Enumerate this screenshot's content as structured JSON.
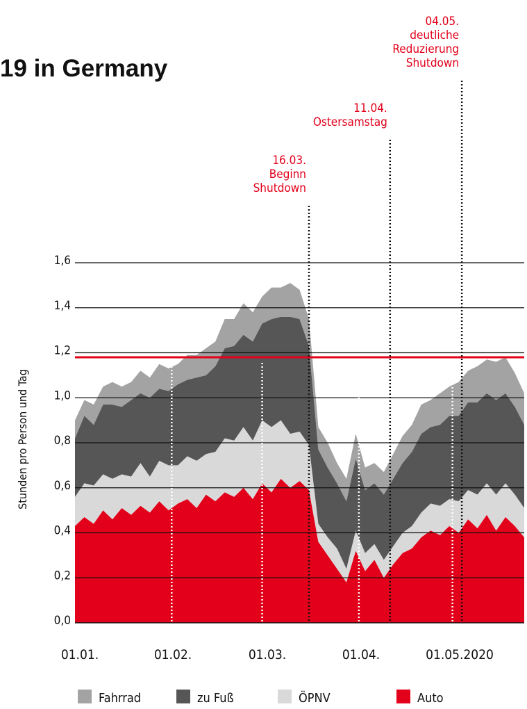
{
  "chart_data": {
    "type": "area",
    "title": "19 in Germany",
    "ylabel": "Stunden pro Person und Tag",
    "ylim": [
      0,
      1.6
    ],
    "yticks": [
      "0,0",
      "0,2",
      "0,4",
      "0,6",
      "0,8",
      "1,0",
      "1,2",
      "1,4",
      "1,6"
    ],
    "xticks": [
      "01.01.",
      "01.02.",
      "01.03.",
      "01.04.",
      "01.05.2020"
    ],
    "reference_line": 1.18,
    "x_days": [
      1,
      4,
      7,
      10,
      13,
      16,
      19,
      22,
      25,
      28,
      31,
      34,
      37,
      40,
      43,
      46,
      49,
      52,
      55,
      58,
      61,
      64,
      67,
      70,
      73,
      76,
      79,
      82,
      85,
      88,
      91,
      94,
      97,
      100,
      103,
      106,
      109,
      112,
      115,
      118,
      121,
      124,
      127,
      130,
      133,
      136,
      139,
      142,
      145
    ],
    "series": [
      {
        "name": "Auto",
        "values": [
          0.43,
          0.47,
          0.44,
          0.5,
          0.46,
          0.51,
          0.48,
          0.52,
          0.49,
          0.54,
          0.5,
          0.53,
          0.55,
          0.51,
          0.57,
          0.54,
          0.58,
          0.56,
          0.6,
          0.55,
          0.62,
          0.58,
          0.64,
          0.6,
          0.63,
          0.59,
          0.36,
          0.3,
          0.24,
          0.18,
          0.32,
          0.23,
          0.28,
          0.2,
          0.26,
          0.31,
          0.33,
          0.38,
          0.41,
          0.39,
          0.43,
          0.4,
          0.46,
          0.42,
          0.48,
          0.41,
          0.47,
          0.43,
          0.38
        ]
      },
      {
        "name": "ÖPNV",
        "values": [
          0.13,
          0.15,
          0.17,
          0.16,
          0.18,
          0.15,
          0.17,
          0.19,
          0.16,
          0.18,
          0.2,
          0.17,
          0.19,
          0.21,
          0.18,
          0.22,
          0.24,
          0.25,
          0.27,
          0.26,
          0.28,
          0.29,
          0.26,
          0.24,
          0.22,
          0.2,
          0.08,
          0.08,
          0.09,
          0.06,
          0.09,
          0.08,
          0.07,
          0.08,
          0.08,
          0.09,
          0.1,
          0.11,
          0.12,
          0.13,
          0.12,
          0.14,
          0.13,
          0.15,
          0.14,
          0.16,
          0.15,
          0.14,
          0.13
        ]
      },
      {
        "name": "zu Fuß",
        "values": [
          0.26,
          0.3,
          0.27,
          0.31,
          0.33,
          0.3,
          0.34,
          0.31,
          0.35,
          0.32,
          0.33,
          0.36,
          0.34,
          0.37,
          0.35,
          0.38,
          0.4,
          0.42,
          0.41,
          0.44,
          0.43,
          0.48,
          0.46,
          0.52,
          0.5,
          0.44,
          0.33,
          0.31,
          0.29,
          0.3,
          0.32,
          0.28,
          0.27,
          0.29,
          0.3,
          0.31,
          0.33,
          0.35,
          0.34,
          0.36,
          0.37,
          0.38,
          0.39,
          0.41,
          0.4,
          0.42,
          0.4,
          0.39,
          0.37
        ]
      },
      {
        "name": "Fahrrad",
        "values": [
          0.08,
          0.07,
          0.09,
          0.08,
          0.1,
          0.09,
          0.08,
          0.1,
          0.09,
          0.11,
          0.1,
          0.09,
          0.11,
          0.1,
          0.12,
          0.11,
          0.13,
          0.12,
          0.14,
          0.13,
          0.12,
          0.14,
          0.13,
          0.15,
          0.13,
          0.12,
          0.1,
          0.11,
          0.09,
          0.1,
          0.11,
          0.1,
          0.09,
          0.1,
          0.11,
          0.12,
          0.12,
          0.13,
          0.12,
          0.14,
          0.13,
          0.15,
          0.14,
          0.16,
          0.15,
          0.17,
          0.16,
          0.15,
          0.14
        ]
      }
    ],
    "events": [
      {
        "day": 76,
        "label": [
          "16.03.",
          "Beginn",
          "Shutdown"
        ]
      },
      {
        "day": 102,
        "label": [
          "11.04.",
          "Ostersamstag"
        ]
      },
      {
        "day": 125,
        "label": [
          "04.05.",
          "deutliche",
          "Reduzierung",
          "Shutdown"
        ]
      }
    ],
    "legend_position": "bottom",
    "colors": {
      "Auto": "#e2001a",
      "ÖPNV": "#d9d9d9",
      "zu Fuß": "#565656",
      "Fahrrad": "#a3a3a3",
      "reference": "#e2001a",
      "grid": "#111111",
      "event_text": "#e2001a"
    }
  }
}
